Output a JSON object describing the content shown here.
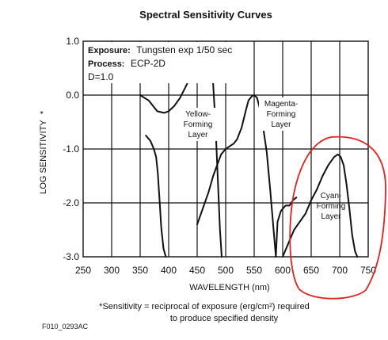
{
  "chart_data": {
    "type": "line",
    "title": "Spectral Sensitivity Curves",
    "xlabel": "WAVELENGTH (nm)",
    "ylabel": "LOG SENSITIVITY",
    "ylabel_marker": "*",
    "xlim": [
      250,
      750
    ],
    "ylim": [
      -3.0,
      1.0
    ],
    "x_ticks": [
      250,
      300,
      350,
      400,
      450,
      500,
      550,
      600,
      650,
      700,
      750
    ],
    "x_tick_labels": [
      "250",
      "300",
      "350",
      "400",
      "450",
      "500",
      "550",
      "600",
      "650",
      "700",
      "750"
    ],
    "y_ticks": [
      1.0,
      0.0,
      -1.0,
      -2.0,
      -3.0
    ],
    "y_tick_labels": [
      "1.0",
      "0.0",
      "-1.0",
      "-2.0",
      "-3.0"
    ],
    "grid": true,
    "info": {
      "exposure_label": "Exposure:",
      "exposure_value": "Tungsten exp 1/50 sec",
      "process_label": "Process:",
      "process_value": "ECP-2D",
      "density": "D=1.0"
    },
    "series": [
      {
        "name": "Yellow-Forming Layer",
        "label_lines": [
          "Yellow-",
          "Forming",
          "Layer"
        ],
        "segments": [
          {
            "x": [
              350,
              365,
              380,
              392,
              400,
              410,
              420,
              432,
              442,
              452,
              462,
              470,
              474,
              478,
              482,
              486,
              490,
              493
            ],
            "y": [
              0.0,
              -0.1,
              -0.3,
              -0.33,
              -0.3,
              -0.2,
              -0.05,
              0.2,
              0.45,
              0.6,
              0.65,
              0.62,
              0.5,
              0.2,
              -0.5,
              -1.5,
              -2.5,
              -3.0
            ]
          },
          {
            "x": [
              360,
              368,
              374,
              378,
              381,
              384,
              387,
              391,
              395
            ],
            "y": [
              -0.75,
              -0.85,
              -1.0,
              -1.15,
              -1.45,
              -1.95,
              -2.45,
              -2.85,
              -3.0
            ]
          }
        ]
      },
      {
        "name": "Magenta-Forming Layer",
        "label_lines": [
          "Magenta-",
          "Forming",
          "Layer"
        ],
        "segments": [
          {
            "x": [
              450,
              460,
              470,
              478,
              485,
              492,
              500,
              507,
              514,
              520,
              528,
              535,
              540,
              546,
              550,
              555,
              560,
              565,
              572,
              578,
              584,
              588
            ],
            "y": [
              -2.4,
              -2.1,
              -1.8,
              -1.5,
              -1.3,
              -1.1,
              -1.0,
              -0.95,
              -0.9,
              -0.82,
              -0.6,
              -0.3,
              -0.1,
              -0.02,
              0.0,
              -0.05,
              -0.25,
              -0.55,
              -1.05,
              -1.75,
              -2.5,
              -3.0
            ]
          },
          {
            "x": [
              588,
              591,
              597,
              605,
              612,
              618,
              624
            ],
            "y": [
              -3.0,
              -2.35,
              -2.15,
              -2.05,
              -2.05,
              -1.95,
              -1.9
            ]
          }
        ]
      },
      {
        "name": "Cyan-Forming Layer",
        "label_lines": [
          "Cyan-",
          "Forming",
          "Layer"
        ],
        "segments": [
          {
            "x": [
              600,
              610,
              620,
              630,
              640,
              650,
              660,
              670,
              680,
              690,
              697,
              702,
              707,
              712,
              717,
              722,
              727,
              731
            ],
            "y": [
              -3.0,
              -2.75,
              -2.5,
              -2.35,
              -2.2,
              -1.95,
              -1.75,
              -1.5,
              -1.3,
              -1.15,
              -1.1,
              -1.15,
              -1.3,
              -1.65,
              -2.1,
              -2.6,
              -2.9,
              -3.0
            ]
          }
        ]
      }
    ],
    "footnote_lines": [
      "*Sensitivity = reciprocal of exposure (erg/cm²) required",
      "to produce specified density"
    ],
    "figure_code": "F010_0293AC",
    "highlight_color": "#e3211d",
    "line_color": "#111111"
  }
}
